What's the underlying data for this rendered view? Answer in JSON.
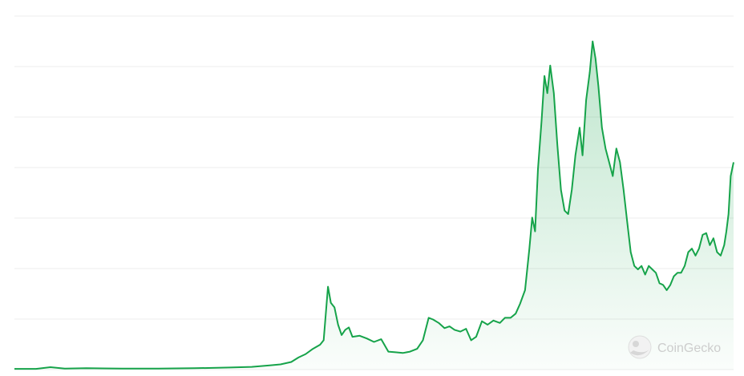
{
  "chart_data": {
    "type": "area",
    "grid": true,
    "legend": "none",
    "gridline_count": 7,
    "y_range": [
      0,
      1
    ],
    "x_range": [
      0,
      1
    ],
    "points": [
      [
        0.0,
        0.002
      ],
      [
        0.03,
        0.002
      ],
      [
        0.05,
        0.007
      ],
      [
        0.07,
        0.003
      ],
      [
        0.1,
        0.004
      ],
      [
        0.15,
        0.003
      ],
      [
        0.2,
        0.003
      ],
      [
        0.25,
        0.004
      ],
      [
        0.3,
        0.006
      ],
      [
        0.33,
        0.008
      ],
      [
        0.355,
        0.012
      ],
      [
        0.37,
        0.015
      ],
      [
        0.385,
        0.022
      ],
      [
        0.395,
        0.035
      ],
      [
        0.405,
        0.045
      ],
      [
        0.415,
        0.06
      ],
      [
        0.425,
        0.072
      ],
      [
        0.43,
        0.085
      ],
      [
        0.436,
        0.24
      ],
      [
        0.44,
        0.193
      ],
      [
        0.445,
        0.18
      ],
      [
        0.45,
        0.13
      ],
      [
        0.455,
        0.1
      ],
      [
        0.46,
        0.115
      ],
      [
        0.465,
        0.122
      ],
      [
        0.47,
        0.095
      ],
      [
        0.48,
        0.098
      ],
      [
        0.49,
        0.09
      ],
      [
        0.5,
        0.08
      ],
      [
        0.51,
        0.088
      ],
      [
        0.52,
        0.052
      ],
      [
        0.53,
        0.05
      ],
      [
        0.54,
        0.048
      ],
      [
        0.55,
        0.052
      ],
      [
        0.56,
        0.06
      ],
      [
        0.568,
        0.085
      ],
      [
        0.576,
        0.15
      ],
      [
        0.582,
        0.145
      ],
      [
        0.59,
        0.135
      ],
      [
        0.598,
        0.12
      ],
      [
        0.605,
        0.125
      ],
      [
        0.612,
        0.115
      ],
      [
        0.62,
        0.11
      ],
      [
        0.628,
        0.118
      ],
      [
        0.635,
        0.085
      ],
      [
        0.642,
        0.095
      ],
      [
        0.65,
        0.14
      ],
      [
        0.658,
        0.13
      ],
      [
        0.666,
        0.142
      ],
      [
        0.675,
        0.135
      ],
      [
        0.682,
        0.15
      ],
      [
        0.69,
        0.15
      ],
      [
        0.697,
        0.162
      ],
      [
        0.703,
        0.19
      ],
      [
        0.71,
        0.23
      ],
      [
        0.716,
        0.35
      ],
      [
        0.72,
        0.44
      ],
      [
        0.724,
        0.4
      ],
      [
        0.728,
        0.58
      ],
      [
        0.733,
        0.72
      ],
      [
        0.737,
        0.85
      ],
      [
        0.741,
        0.8
      ],
      [
        0.745,
        0.88
      ],
      [
        0.75,
        0.8
      ],
      [
        0.755,
        0.65
      ],
      [
        0.76,
        0.52
      ],
      [
        0.765,
        0.46
      ],
      [
        0.77,
        0.45
      ],
      [
        0.775,
        0.52
      ],
      [
        0.78,
        0.62
      ],
      [
        0.786,
        0.7
      ],
      [
        0.79,
        0.62
      ],
      [
        0.795,
        0.78
      ],
      [
        0.8,
        0.86
      ],
      [
        0.804,
        0.95
      ],
      [
        0.808,
        0.9
      ],
      [
        0.812,
        0.82
      ],
      [
        0.817,
        0.7
      ],
      [
        0.822,
        0.64
      ],
      [
        0.827,
        0.6
      ],
      [
        0.832,
        0.56
      ],
      [
        0.837,
        0.64
      ],
      [
        0.842,
        0.6
      ],
      [
        0.847,
        0.52
      ],
      [
        0.852,
        0.43
      ],
      [
        0.857,
        0.34
      ],
      [
        0.862,
        0.3
      ],
      [
        0.867,
        0.29
      ],
      [
        0.872,
        0.3
      ],
      [
        0.877,
        0.275
      ],
      [
        0.882,
        0.3
      ],
      [
        0.887,
        0.29
      ],
      [
        0.892,
        0.28
      ],
      [
        0.897,
        0.25
      ],
      [
        0.902,
        0.245
      ],
      [
        0.907,
        0.23
      ],
      [
        0.912,
        0.245
      ],
      [
        0.917,
        0.27
      ],
      [
        0.922,
        0.28
      ],
      [
        0.927,
        0.28
      ],
      [
        0.932,
        0.3
      ],
      [
        0.937,
        0.34
      ],
      [
        0.942,
        0.35
      ],
      [
        0.947,
        0.33
      ],
      [
        0.952,
        0.35
      ],
      [
        0.957,
        0.39
      ],
      [
        0.962,
        0.395
      ],
      [
        0.967,
        0.36
      ],
      [
        0.972,
        0.38
      ],
      [
        0.977,
        0.34
      ],
      [
        0.982,
        0.33
      ],
      [
        0.987,
        0.36
      ],
      [
        0.99,
        0.4
      ],
      [
        0.993,
        0.45
      ],
      [
        0.996,
        0.56
      ],
      [
        1.0,
        0.6
      ]
    ],
    "colors": {
      "line": "#16a34a",
      "fill_top": "#16a34a",
      "grid": "#ececec"
    }
  },
  "watermark": {
    "text": "CoinGecko",
    "icon": "gecko-logo-icon"
  }
}
